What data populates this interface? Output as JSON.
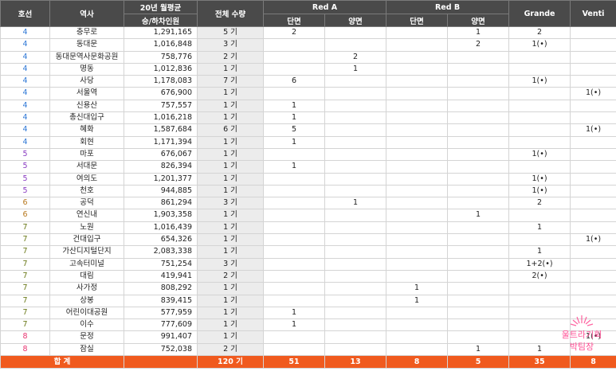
{
  "headers": {
    "line": "호선",
    "station": "역사",
    "riders_line1": "20년 월평균",
    "riders_line2": "승/하차인원",
    "count": "전체 수량",
    "red_a": "Red A",
    "red_b": "Red B",
    "grande": "Grande",
    "venti": "Venti",
    "single": "단면",
    "double": "양면"
  },
  "rows": [
    {
      "line": "4",
      "station": "충무로",
      "riders": "1,291,165",
      "count": "5 기",
      "ra_s": "2",
      "ra_d": "",
      "rb_s": "",
      "rb_d": "1",
      "grande": "2",
      "venti": ""
    },
    {
      "line": "4",
      "station": "동대문",
      "riders": "1,016,848",
      "count": "3 기",
      "ra_s": "",
      "ra_d": "",
      "rb_s": "",
      "rb_d": "2",
      "grande": "1(•)",
      "venti": ""
    },
    {
      "line": "4",
      "station": "동대문역사문화공원",
      "riders": "758,776",
      "count": "2 기",
      "ra_s": "",
      "ra_d": "2",
      "rb_s": "",
      "rb_d": "",
      "grande": "",
      "venti": ""
    },
    {
      "line": "4",
      "station": "명동",
      "riders": "1,012,836",
      "count": "1 기",
      "ra_s": "",
      "ra_d": "1",
      "rb_s": "",
      "rb_d": "",
      "grande": "",
      "venti": ""
    },
    {
      "line": "4",
      "station": "사당",
      "riders": "1,178,083",
      "count": "7 기",
      "ra_s": "6",
      "ra_d": "",
      "rb_s": "",
      "rb_d": "",
      "grande": "1(•)",
      "venti": ""
    },
    {
      "line": "4",
      "station": "서울역",
      "riders": "676,900",
      "count": "1 기",
      "ra_s": "",
      "ra_d": "",
      "rb_s": "",
      "rb_d": "",
      "grande": "",
      "venti": "1(•)"
    },
    {
      "line": "4",
      "station": "신용산",
      "riders": "757,557",
      "count": "1 기",
      "ra_s": "1",
      "ra_d": "",
      "rb_s": "",
      "rb_d": "",
      "grande": "",
      "venti": ""
    },
    {
      "line": "4",
      "station": "총신대입구",
      "riders": "1,016,218",
      "count": "1 기",
      "ra_s": "1",
      "ra_d": "",
      "rb_s": "",
      "rb_d": "",
      "grande": "",
      "venti": ""
    },
    {
      "line": "4",
      "station": "혜화",
      "riders": "1,587,684",
      "count": "6 기",
      "ra_s": "5",
      "ra_d": "",
      "rb_s": "",
      "rb_d": "",
      "grande": "",
      "venti": "1(•)"
    },
    {
      "line": "4",
      "station": "회현",
      "riders": "1,171,394",
      "count": "1 기",
      "ra_s": "1",
      "ra_d": "",
      "rb_s": "",
      "rb_d": "",
      "grande": "",
      "venti": ""
    },
    {
      "line": "5",
      "station": "마포",
      "riders": "676,067",
      "count": "1 기",
      "ra_s": "",
      "ra_d": "",
      "rb_s": "",
      "rb_d": "",
      "grande": "1(•)",
      "venti": ""
    },
    {
      "line": "5",
      "station": "서대문",
      "riders": "826,394",
      "count": "1 기",
      "ra_s": "1",
      "ra_d": "",
      "rb_s": "",
      "rb_d": "",
      "grande": "",
      "venti": ""
    },
    {
      "line": "5",
      "station": "여의도",
      "riders": "1,201,377",
      "count": "1 기",
      "ra_s": "",
      "ra_d": "",
      "rb_s": "",
      "rb_d": "",
      "grande": "1(•)",
      "venti": ""
    },
    {
      "line": "5",
      "station": "천호",
      "riders": "944,885",
      "count": "1 기",
      "ra_s": "",
      "ra_d": "",
      "rb_s": "",
      "rb_d": "",
      "grande": "1(•)",
      "venti": ""
    },
    {
      "line": "6",
      "station": "공덕",
      "riders": "861,294",
      "count": "3 기",
      "ra_s": "",
      "ra_d": "1",
      "rb_s": "",
      "rb_d": "",
      "grande": "2",
      "venti": ""
    },
    {
      "line": "6",
      "station": "연신내",
      "riders": "1,903,358",
      "count": "1 기",
      "ra_s": "",
      "ra_d": "",
      "rb_s": "",
      "rb_d": "1",
      "grande": "",
      "venti": ""
    },
    {
      "line": "7",
      "station": "노원",
      "riders": "1,016,439",
      "count": "1 기",
      "ra_s": "",
      "ra_d": "",
      "rb_s": "",
      "rb_d": "",
      "grande": "1",
      "venti": ""
    },
    {
      "line": "7",
      "station": "건대입구",
      "riders": "654,326",
      "count": "1 기",
      "ra_s": "",
      "ra_d": "",
      "rb_s": "",
      "rb_d": "",
      "grande": "",
      "venti": "1(•)"
    },
    {
      "line": "7",
      "station": "가산디지털단지",
      "riders": "2,083,338",
      "count": "1 기",
      "ra_s": "",
      "ra_d": "",
      "rb_s": "",
      "rb_d": "",
      "grande": "1",
      "venti": ""
    },
    {
      "line": "7",
      "station": "고속터미널",
      "riders": "751,254",
      "count": "3 기",
      "ra_s": "",
      "ra_d": "",
      "rb_s": "",
      "rb_d": "",
      "grande": "1+2(•)",
      "venti": ""
    },
    {
      "line": "7",
      "station": "대림",
      "riders": "419,941",
      "count": "2 기",
      "ra_s": "",
      "ra_d": "",
      "rb_s": "",
      "rb_d": "",
      "grande": "2(•)",
      "venti": ""
    },
    {
      "line": "7",
      "station": "사가정",
      "riders": "808,292",
      "count": "1 기",
      "ra_s": "",
      "ra_d": "",
      "rb_s": "1",
      "rb_d": "",
      "grande": "",
      "venti": ""
    },
    {
      "line": "7",
      "station": "상봉",
      "riders": "839,415",
      "count": "1 기",
      "ra_s": "",
      "ra_d": "",
      "rb_s": "1",
      "rb_d": "",
      "grande": "",
      "venti": ""
    },
    {
      "line": "7",
      "station": "어린이대공원",
      "riders": "577,959",
      "count": "1 기",
      "ra_s": "1",
      "ra_d": "",
      "rb_s": "",
      "rb_d": "",
      "grande": "",
      "venti": ""
    },
    {
      "line": "7",
      "station": "이수",
      "riders": "777,609",
      "count": "1 기",
      "ra_s": "1",
      "ra_d": "",
      "rb_s": "",
      "rb_d": "",
      "grande": "",
      "venti": ""
    },
    {
      "line": "8",
      "station": "문정",
      "riders": "991,407",
      "count": "1 기",
      "ra_s": "",
      "ra_d": "",
      "rb_s": "",
      "rb_d": "",
      "grande": "",
      "venti": "1(•)"
    },
    {
      "line": "8",
      "station": "잠실",
      "riders": "752,038",
      "count": "2 기",
      "ra_s": "",
      "ra_d": "",
      "rb_s": "",
      "rb_d": "1",
      "grande": "1",
      "venti": ""
    }
  ],
  "total": {
    "label": "합 계",
    "count": "120 기",
    "ra_s": "51",
    "ra_d": "13",
    "rb_s": "8",
    "rb_d": "5",
    "grande": "35",
    "venti": "8"
  },
  "line_colors": {
    "4": "#2f78d6",
    "5": "#8a3cc2",
    "6": "#b7791f",
    "7": "#6b7a1a",
    "8": "#e8336f"
  },
  "watermark": {
    "line1": "울트라기획",
    "line2": "박팀장",
    "color": "#ff3e8a"
  }
}
